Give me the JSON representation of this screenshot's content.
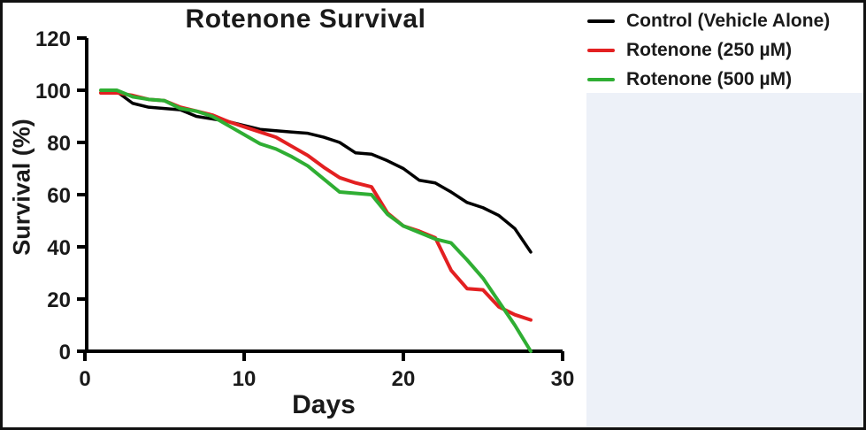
{
  "figure": {
    "background": "#ffffff",
    "border_color": "#111111",
    "side_panel_color": "#edf1f8"
  },
  "chart_data": {
    "type": "line",
    "title": "Rotenone Survival",
    "xlabel": "Days",
    "ylabel": "Survival (%)",
    "xlim": [
      0,
      30
    ],
    "ylim": [
      0,
      120
    ],
    "xticks": [
      0,
      10,
      20,
      30
    ],
    "yticks": [
      0,
      20,
      40,
      60,
      80,
      100,
      120
    ],
    "grid": false,
    "legend_position": "top-right",
    "x": [
      1,
      2,
      3,
      4,
      5,
      6,
      7,
      8,
      9,
      10,
      11,
      12,
      13,
      14,
      15,
      16,
      17,
      18,
      19,
      20,
      21,
      22,
      23,
      24,
      25,
      26,
      27,
      28
    ],
    "series": [
      {
        "name": "Control (Vehicle Alone)",
        "color": "#000000",
        "values": [
          99,
          99.5,
          95,
          93.5,
          93,
          92.5,
          90,
          89,
          88,
          86.5,
          85,
          84.5,
          84,
          83.5,
          82,
          80,
          76,
          75.5,
          73,
          70,
          65.5,
          64.5,
          61,
          57,
          55,
          52,
          47,
          38
        ]
      },
      {
        "name": "Rotenone (250 µM)",
        "color": "#e32021",
        "values": [
          99,
          99,
          98,
          96.5,
          96,
          93.5,
          92,
          90.5,
          88,
          86,
          84,
          82,
          78.5,
          75,
          70.5,
          66.5,
          64.5,
          63,
          53,
          48,
          46,
          43.5,
          31,
          24,
          23.5,
          17,
          14,
          12
        ]
      },
      {
        "name": "Rotenone (500 µM)",
        "color": "#2fae33",
        "values": [
          100,
          100,
          97.5,
          96.5,
          96,
          93,
          92,
          90,
          86.5,
          83,
          79.5,
          77.5,
          74.5,
          71,
          66,
          61,
          60.5,
          60,
          52.5,
          48,
          45.5,
          43,
          41.5,
          35,
          28,
          19,
          10,
          0
        ]
      }
    ]
  }
}
